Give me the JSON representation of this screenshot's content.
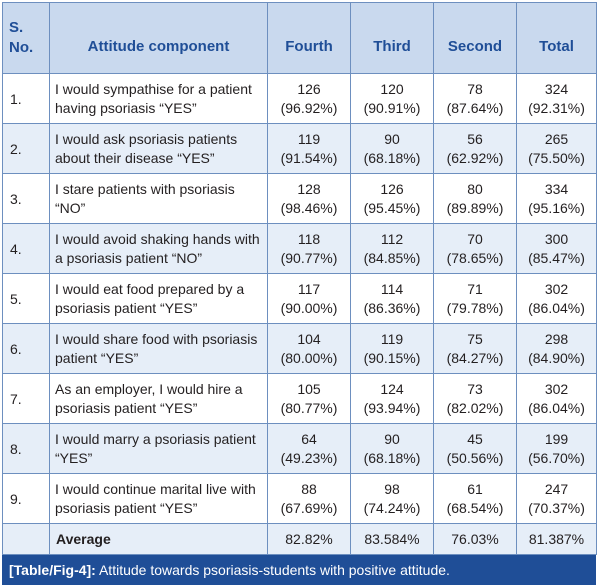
{
  "table": {
    "headers": {
      "sno": "S. No.",
      "attitude": "Attitude component",
      "fourth": "Fourth",
      "third": "Third",
      "second": "Second",
      "total": "Total"
    },
    "rows": [
      {
        "sno": "1.",
        "attitude": "I would sympathise for a patient having psoriasis “YES”",
        "fourth": {
          "n": "126",
          "pct": "(96.92%)"
        },
        "third": {
          "n": "120",
          "pct": "(90.91%)"
        },
        "second": {
          "n": "78",
          "pct": "(87.64%)"
        },
        "total": {
          "n": "324",
          "pct": "(92.31%)"
        }
      },
      {
        "sno": "2.",
        "attitude": "I would ask psoriasis patients about their disease “YES”",
        "fourth": {
          "n": "119",
          "pct": "(91.54%)"
        },
        "third": {
          "n": "90",
          "pct": "(68.18%)"
        },
        "second": {
          "n": "56",
          "pct": "(62.92%)"
        },
        "total": {
          "n": "265",
          "pct": "(75.50%)"
        }
      },
      {
        "sno": "3.",
        "attitude": "I stare patients with psoriasis “NO”",
        "fourth": {
          "n": "128",
          "pct": "(98.46%)"
        },
        "third": {
          "n": "126",
          "pct": "(95.45%)"
        },
        "second": {
          "n": "80",
          "pct": "(89.89%)"
        },
        "total": {
          "n": "334",
          "pct": "(95.16%)"
        }
      },
      {
        "sno": "4.",
        "attitude": "I would avoid shaking hands with a psoriasis patient “NO”",
        "fourth": {
          "n": "118",
          "pct": "(90.77%)"
        },
        "third": {
          "n": "112",
          "pct": "(84.85%)"
        },
        "second": {
          "n": "70",
          "pct": "(78.65%)"
        },
        "total": {
          "n": "300",
          "pct": "(85.47%)"
        }
      },
      {
        "sno": "5.",
        "attitude": "I would eat food prepared by a psoriasis patient “YES”",
        "fourth": {
          "n": "117",
          "pct": "(90.00%)"
        },
        "third": {
          "n": "114",
          "pct": "(86.36%)"
        },
        "second": {
          "n": "71",
          "pct": "(79.78%)"
        },
        "total": {
          "n": "302",
          "pct": "(86.04%)"
        }
      },
      {
        "sno": "6.",
        "attitude": "I would share food with psoriasis patient “YES”",
        "fourth": {
          "n": "104",
          "pct": "(80.00%)"
        },
        "third": {
          "n": "119",
          "pct": "(90.15%)"
        },
        "second": {
          "n": "75",
          "pct": "(84.27%)"
        },
        "total": {
          "n": "298",
          "pct": "(84.90%)"
        }
      },
      {
        "sno": "7.",
        "attitude": "As an employer, I would hire a psoriasis patient “YES”",
        "fourth": {
          "n": "105",
          "pct": "(80.77%)"
        },
        "third": {
          "n": "124",
          "pct": "(93.94%)"
        },
        "second": {
          "n": "73",
          "pct": "(82.02%)"
        },
        "total": {
          "n": "302",
          "pct": "(86.04%)"
        }
      },
      {
        "sno": "8.",
        "attitude": "I would marry a psoriasis patient “YES”",
        "fourth": {
          "n": "64",
          "pct": "(49.23%)"
        },
        "third": {
          "n": "90",
          "pct": "(68.18%)"
        },
        "second": {
          "n": "45",
          "pct": "(50.56%)"
        },
        "total": {
          "n": "199",
          "pct": "(56.70%)"
        }
      },
      {
        "sno": "9.",
        "attitude": "I would continue marital live with psoriasis patient “YES”",
        "fourth": {
          "n": "88",
          "pct": "(67.69%)"
        },
        "third": {
          "n": "98",
          "pct": "(74.24%)"
        },
        "second": {
          "n": "61",
          "pct": "(68.54%)"
        },
        "total": {
          "n": "247",
          "pct": "(70.37%)"
        }
      }
    ],
    "average": {
      "label": "Average",
      "fourth": "82.82%",
      "third": "83.584%",
      "second": "76.03%",
      "total": "81.387%"
    }
  },
  "caption": {
    "label": "[Table/Fig-4]:",
    "text": "Attitude towards psoriasis-students with positive attitude."
  },
  "colors": {
    "header_bg": "#c9d9ee",
    "header_text": "#1f4e97",
    "row_alt_bg": "#e6eef8",
    "border": "#6d8fbf",
    "caption_bg": "#1f4e97"
  }
}
